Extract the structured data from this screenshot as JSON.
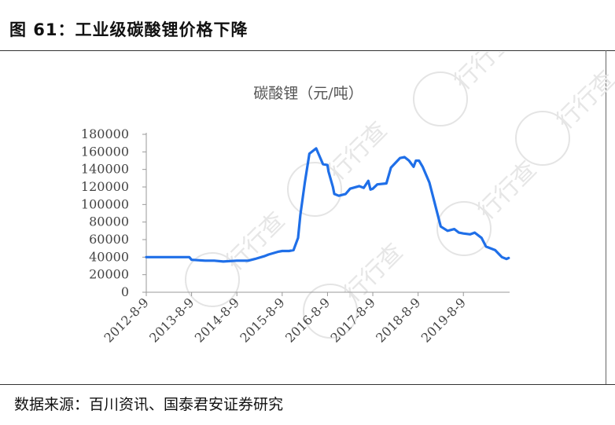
{
  "figure": {
    "title": "图 61：工业级碳酸锂价格下降",
    "source": "数据来源：百川资讯、国泰君安证券研究"
  },
  "watermark": {
    "text": "行行查"
  },
  "colors": {
    "line": "#1f6fe8",
    "axis": "#999999"
  },
  "chart_data": {
    "type": "line",
    "title": "碳酸锂（元/吨）",
    "xlabel": "",
    "ylabel": "",
    "ylim": [
      0,
      180000
    ],
    "yticks": [
      0,
      20000,
      40000,
      60000,
      80000,
      100000,
      120000,
      140000,
      160000,
      180000
    ],
    "xticks": [
      "2012-8-9",
      "2013-8-9",
      "2014-8-9",
      "2015-8-9",
      "2016-8-9",
      "2017-8-9",
      "2018-8-9",
      "2019-8-9"
    ],
    "grid": false,
    "series": [
      {
        "name": "",
        "x": [
          2012.6,
          2013.55,
          2013.6,
          2013.9,
          2014.1,
          2014.3,
          2014.6,
          2014.85,
          2015.0,
          2015.2,
          2015.3,
          2015.5,
          2015.6,
          2015.75,
          2015.85,
          2015.95,
          2016.0,
          2016.1,
          2016.2,
          2016.35,
          2016.5,
          2016.6,
          2016.62,
          2016.72,
          2016.75,
          2016.85,
          2017.0,
          2017.1,
          2017.3,
          2017.4,
          2017.5,
          2017.55,
          2017.6,
          2017.7,
          2017.9,
          2018.0,
          2018.2,
          2018.3,
          2018.4,
          2018.5,
          2018.55,
          2018.62,
          2018.7,
          2018.85,
          2018.95,
          2019.1,
          2019.25,
          2019.4,
          2019.5,
          2019.6,
          2019.75,
          2019.85,
          2020.0,
          2020.1,
          2020.3,
          2020.45,
          2020.55,
          2020.6
        ],
        "values": [
          40000,
          40000,
          37000,
          36000,
          36000,
          35000,
          36000,
          36000,
          38000,
          41000,
          43000,
          46000,
          47000,
          47000,
          48000,
          62000,
          88000,
          125000,
          158000,
          164000,
          146000,
          145000,
          138000,
          120000,
          112000,
          110000,
          112000,
          118000,
          121000,
          119000,
          127000,
          117000,
          118000,
          123000,
          124000,
          142000,
          153000,
          154000,
          150000,
          143000,
          150000,
          150000,
          143000,
          125000,
          105000,
          75000,
          70000,
          72000,
          68000,
          67000,
          66000,
          68000,
          62000,
          52000,
          48000,
          40000,
          38000,
          39000
        ]
      }
    ]
  }
}
